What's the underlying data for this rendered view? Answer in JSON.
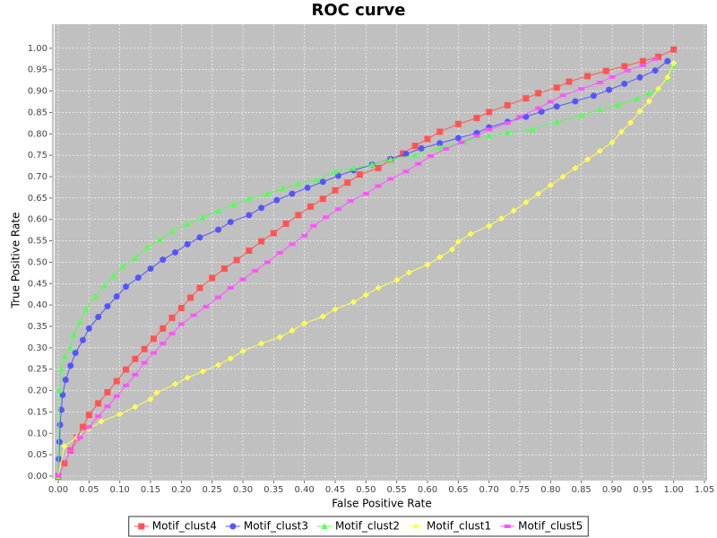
{
  "chart_data": {
    "type": "line",
    "title": "ROC curve",
    "x_label": "False Positive Rate",
    "y_label": "True Positive Rate",
    "xlim": [
      0,
      1.05
    ],
    "ylim": [
      0,
      1.05
    ],
    "xticks": [
      {
        "value": 0,
        "label": "0.00"
      },
      {
        "value": 0.05,
        "label": "0.05"
      },
      {
        "value": 0.1,
        "label": "0.10"
      },
      {
        "value": 0.15,
        "label": "0.15"
      },
      {
        "value": 0.2,
        "label": "0.20"
      },
      {
        "value": 0.25,
        "label": "0.25"
      },
      {
        "value": 0.3,
        "label": "0.30"
      },
      {
        "value": 0.35,
        "label": "0.35"
      },
      {
        "value": 0.4,
        "label": "0.40"
      },
      {
        "value": 0.45,
        "label": "0.45"
      },
      {
        "value": 0.5,
        "label": "0.50"
      },
      {
        "value": 0.55,
        "label": "0.55"
      },
      {
        "value": 0.6,
        "label": "0.60"
      },
      {
        "value": 0.65,
        "label": "0.65"
      },
      {
        "value": 0.7,
        "label": "0.70"
      },
      {
        "value": 0.75,
        "label": "0.75"
      },
      {
        "value": 0.8,
        "label": "0.80"
      },
      {
        "value": 0.85,
        "label": "0.85"
      },
      {
        "value": 0.9,
        "label": "0.90"
      },
      {
        "value": 0.95,
        "label": "0.95"
      },
      {
        "value": 1,
        "label": "1.00"
      },
      {
        "value": 1.05,
        "label": "1.05"
      }
    ],
    "yticks": [
      {
        "value": 0,
        "label": "0.00"
      },
      {
        "value": 0.05,
        "label": "0.05"
      },
      {
        "value": 0.1,
        "label": "0.10"
      },
      {
        "value": 0.15,
        "label": "0.15"
      },
      {
        "value": 0.2,
        "label": "0.20"
      },
      {
        "value": 0.25,
        "label": "0.25"
      },
      {
        "value": 0.3,
        "label": "0.30"
      },
      {
        "value": 0.35,
        "label": "0.35"
      },
      {
        "value": 0.4,
        "label": "0.40"
      },
      {
        "value": 0.45,
        "label": "0.45"
      },
      {
        "value": 0.5,
        "label": "0.50"
      },
      {
        "value": 0.55,
        "label": "0.55"
      },
      {
        "value": 0.6,
        "label": "0.60"
      },
      {
        "value": 0.65,
        "label": "0.65"
      },
      {
        "value": 0.7,
        "label": "0.70"
      },
      {
        "value": 0.75,
        "label": "0.75"
      },
      {
        "value": 0.8,
        "label": "0.80"
      },
      {
        "value": 0.85,
        "label": "0.85"
      },
      {
        "value": 0.9,
        "label": "0.90"
      },
      {
        "value": 0.95,
        "label": "0.95"
      },
      {
        "value": 1,
        "label": "1.00"
      }
    ],
    "grid": true,
    "legend": "bottom",
    "series": [
      {
        "name": "Motif_clust4",
        "color": "#ff5555",
        "marker": "square",
        "x": [
          0,
          0.01,
          0.02,
          0.03,
          0.04,
          0.05,
          0.065,
          0.08,
          0.095,
          0.11,
          0.125,
          0.14,
          0.155,
          0.17,
          0.185,
          0.2,
          0.215,
          0.23,
          0.25,
          0.27,
          0.29,
          0.31,
          0.33,
          0.35,
          0.37,
          0.39,
          0.41,
          0.43,
          0.45,
          0.47,
          0.49,
          0.52,
          0.54,
          0.56,
          0.58,
          0.6,
          0.62,
          0.65,
          0.68,
          0.7,
          0.73,
          0.76,
          0.78,
          0.81,
          0.83,
          0.86,
          0.89,
          0.92,
          0.95,
          0.975,
          1.0
        ],
        "values": [
          0,
          0.03,
          0.06,
          0.09,
          0.115,
          0.143,
          0.17,
          0.196,
          0.222,
          0.249,
          0.274,
          0.297,
          0.321,
          0.345,
          0.37,
          0.393,
          0.417,
          0.44,
          0.463,
          0.485,
          0.505,
          0.527,
          0.549,
          0.568,
          0.59,
          0.61,
          0.63,
          0.648,
          0.668,
          0.686,
          0.705,
          0.72,
          0.74,
          0.754,
          0.772,
          0.788,
          0.805,
          0.823,
          0.837,
          0.851,
          0.867,
          0.883,
          0.895,
          0.908,
          0.922,
          0.935,
          0.947,
          0.958,
          0.97,
          0.98,
          0.997
        ]
      },
      {
        "name": "Motif_clust3",
        "color": "#5555ff",
        "marker": "circle",
        "x": [
          0,
          0.001,
          0.002,
          0.003,
          0.005,
          0.007,
          0.012,
          0.02,
          0.028,
          0.04,
          0.05,
          0.065,
          0.08,
          0.095,
          0.11,
          0.13,
          0.15,
          0.17,
          0.19,
          0.21,
          0.23,
          0.26,
          0.28,
          0.31,
          0.33,
          0.355,
          0.38,
          0.405,
          0.43,
          0.455,
          0.48,
          0.51,
          0.54,
          0.565,
          0.59,
          0.62,
          0.65,
          0.68,
          0.7,
          0.73,
          0.76,
          0.785,
          0.81,
          0.84,
          0.87,
          0.895,
          0.92,
          0.945,
          0.97,
          0.99
        ],
        "values": [
          0,
          0.04,
          0.08,
          0.12,
          0.155,
          0.19,
          0.225,
          0.258,
          0.288,
          0.318,
          0.345,
          0.372,
          0.397,
          0.42,
          0.443,
          0.464,
          0.485,
          0.506,
          0.523,
          0.542,
          0.558,
          0.576,
          0.594,
          0.61,
          0.627,
          0.645,
          0.66,
          0.674,
          0.688,
          0.702,
          0.715,
          0.728,
          0.741,
          0.753,
          0.766,
          0.778,
          0.79,
          0.802,
          0.815,
          0.828,
          0.84,
          0.852,
          0.864,
          0.876,
          0.889,
          0.903,
          0.917,
          0.932,
          0.948,
          0.97
        ]
      },
      {
        "name": "Motif_clust2",
        "color": "#55ff55",
        "marker": "triangle",
        "x": [
          0,
          0.002,
          0.005,
          0.01,
          0.02,
          0.025,
          0.035,
          0.045,
          0.06,
          0.075,
          0.09,
          0.105,
          0.125,
          0.145,
          0.165,
          0.185,
          0.21,
          0.235,
          0.26,
          0.285,
          0.31,
          0.34,
          0.365,
          0.39,
          0.42,
          0.45,
          0.48,
          0.51,
          0.54,
          0.58,
          0.62,
          0.66,
          0.7,
          0.73,
          0.77,
          0.81,
          0.85,
          0.88,
          0.91,
          0.94,
          0.96,
          0.975,
          0.99,
          1.0
        ],
        "values": [
          0,
          0.2,
          0.25,
          0.28,
          0.3,
          0.33,
          0.36,
          0.39,
          0.42,
          0.445,
          0.468,
          0.49,
          0.51,
          0.535,
          0.553,
          0.572,
          0.59,
          0.605,
          0.62,
          0.635,
          0.648,
          0.66,
          0.672,
          0.683,
          0.693,
          0.712,
          0.72,
          0.728,
          0.74,
          0.75,
          0.768,
          0.782,
          0.795,
          0.803,
          0.81,
          0.828,
          0.843,
          0.857,
          0.868,
          0.882,
          0.895,
          0.905,
          0.93,
          0.96
        ]
      },
      {
        "name": "Motif_clust1",
        "color": "#ffff55",
        "marker": "diamond",
        "x": [
          0,
          0.01,
          0.03,
          0.05,
          0.07,
          0.1,
          0.125,
          0.15,
          0.16,
          0.19,
          0.21,
          0.235,
          0.26,
          0.28,
          0.3,
          0.33,
          0.36,
          0.38,
          0.4,
          0.43,
          0.45,
          0.48,
          0.5,
          0.52,
          0.55,
          0.57,
          0.6,
          0.62,
          0.64,
          0.65,
          0.67,
          0.7,
          0.72,
          0.74,
          0.76,
          0.78,
          0.8,
          0.82,
          0.84,
          0.86,
          0.88,
          0.9,
          0.915,
          0.93,
          0.945,
          0.96,
          0.975,
          0.99,
          1.0
        ],
        "values": [
          0,
          0.07,
          0.09,
          0.11,
          0.128,
          0.145,
          0.162,
          0.18,
          0.195,
          0.215,
          0.23,
          0.245,
          0.26,
          0.275,
          0.292,
          0.31,
          0.325,
          0.34,
          0.357,
          0.373,
          0.39,
          0.407,
          0.424,
          0.44,
          0.458,
          0.476,
          0.494,
          0.512,
          0.53,
          0.548,
          0.566,
          0.585,
          0.602,
          0.62,
          0.64,
          0.66,
          0.68,
          0.7,
          0.72,
          0.74,
          0.76,
          0.78,
          0.805,
          0.826,
          0.853,
          0.876,
          0.905,
          0.932,
          0.965
        ]
      },
      {
        "name": "Motif_clust5",
        "color": "#ff55ff",
        "marker": "rect",
        "x": [
          0,
          0.02,
          0.035,
          0.05,
          0.065,
          0.08,
          0.095,
          0.11,
          0.125,
          0.14,
          0.155,
          0.17,
          0.185,
          0.2,
          0.22,
          0.24,
          0.26,
          0.28,
          0.3,
          0.32,
          0.34,
          0.36,
          0.38,
          0.4,
          0.415,
          0.435,
          0.455,
          0.475,
          0.5,
          0.52,
          0.54,
          0.565,
          0.585,
          0.605,
          0.63,
          0.655,
          0.68,
          0.7,
          0.73,
          0.75,
          0.78,
          0.8,
          0.82,
          0.85,
          0.88,
          0.9,
          0.925,
          0.95,
          0.97
        ],
        "values": [
          0,
          0.06,
          0.09,
          0.115,
          0.14,
          0.163,
          0.187,
          0.212,
          0.237,
          0.265,
          0.288,
          0.31,
          0.333,
          0.355,
          0.376,
          0.396,
          0.418,
          0.44,
          0.46,
          0.48,
          0.5,
          0.522,
          0.542,
          0.562,
          0.585,
          0.605,
          0.624,
          0.643,
          0.66,
          0.678,
          0.695,
          0.712,
          0.73,
          0.748,
          0.765,
          0.78,
          0.795,
          0.81,
          0.825,
          0.84,
          0.86,
          0.875,
          0.89,
          0.905,
          0.92,
          0.933,
          0.948,
          0.96,
          0.975
        ]
      }
    ]
  }
}
